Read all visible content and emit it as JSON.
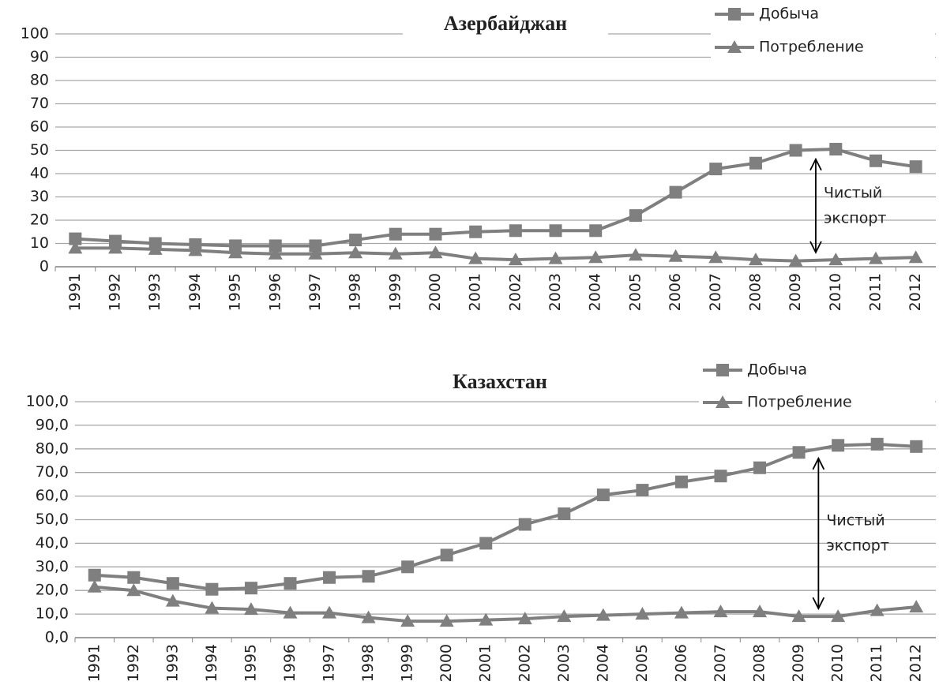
{
  "chart_data": [
    {
      "type": "line",
      "title": "Азербайджан",
      "categories": [
        "1991",
        "1992",
        "1993",
        "1994",
        "1995",
        "1996",
        "1997",
        "1998",
        "1999",
        "2000",
        "2001",
        "2002",
        "2003",
        "2004",
        "2005",
        "2006",
        "2007",
        "2008",
        "2009",
        "2010",
        "2011",
        "2012"
      ],
      "series": [
        {
          "name": "Добыча",
          "color": "#7f7f7f",
          "marker": "square",
          "values": [
            12,
            11,
            10,
            9.5,
            9,
            9,
            9,
            11.5,
            14,
            14,
            15,
            15.5,
            15.5,
            15.5,
            22,
            32,
            42,
            44.5,
            50,
            50.5,
            45.5,
            43
          ]
        },
        {
          "name": "Потребление",
          "color": "#7f7f7f",
          "marker": "triangle",
          "values": [
            8,
            8,
            7.5,
            7,
            6,
            5.5,
            5.5,
            6,
            5.5,
            6,
            3.5,
            3,
            3.5,
            4,
            5,
            4.5,
            4,
            3,
            2.5,
            3,
            3.5,
            4
          ]
        }
      ],
      "ylim": [
        0,
        100
      ],
      "yticks": [
        0,
        10,
        20,
        30,
        40,
        50,
        60,
        70,
        80,
        90,
        100
      ],
      "grid": true,
      "legend": "top-right",
      "annotation": [
        "Чистый",
        "экспорт"
      ]
    },
    {
      "type": "line",
      "title": "Казахстан",
      "categories": [
        "1991",
        "1992",
        "1993",
        "1994",
        "1995",
        "1996",
        "1997",
        "1998",
        "1999",
        "2000",
        "2001",
        "2002",
        "2003",
        "2004",
        "2005",
        "2006",
        "2007",
        "2008",
        "2009",
        "2010",
        "2011",
        "2012"
      ],
      "series": [
        {
          "name": "Добыча",
          "color": "#7f7f7f",
          "marker": "square",
          "values": [
            26.5,
            25.5,
            23,
            20.5,
            21,
            23,
            25.5,
            26,
            30,
            35,
            40,
            48,
            52.5,
            60.5,
            62.5,
            66,
            68.5,
            72,
            78.5,
            81.5,
            82,
            81
          ]
        },
        {
          "name": "Потребление",
          "color": "#7f7f7f",
          "marker": "triangle",
          "values": [
            21.5,
            20,
            15.5,
            12.5,
            12,
            10.5,
            10.5,
            8.5,
            7,
            7,
            7.5,
            8,
            9,
            9.5,
            10,
            10.5,
            11,
            11,
            9,
            9,
            11.5,
            13
          ]
        }
      ],
      "ylim": [
        0,
        100
      ],
      "yticks": [
        {
          "value": 0,
          "label": "0,0"
        },
        {
          "value": 10,
          "label": "10,0"
        },
        {
          "value": 20,
          "label": "20,0"
        },
        {
          "value": 30,
          "label": "30,0"
        },
        {
          "value": 40,
          "label": "40,0"
        },
        {
          "value": 50,
          "label": "50,0"
        },
        {
          "value": 60,
          "label": "60,0"
        },
        {
          "value": 70,
          "label": "70,0"
        },
        {
          "value": 80,
          "label": "80,0"
        },
        {
          "value": 90,
          "label": "90,0"
        },
        {
          "value": 100,
          "label": "100,0"
        }
      ],
      "grid": true,
      "legend": "top-right",
      "annotation": [
        "Чистый",
        "экспорт"
      ]
    }
  ]
}
